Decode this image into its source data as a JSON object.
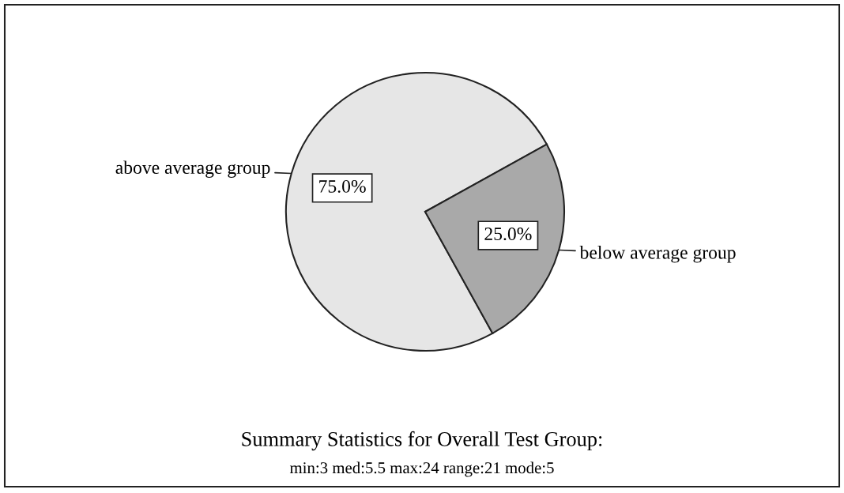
{
  "chart_data": {
    "type": "pie",
    "title": "Summary Statistics for Overall Test Group:",
    "annotations": [
      "min:3 med:5.5 max:24 range:21 mode:5"
    ],
    "categories": [
      "above average group",
      "below average group"
    ],
    "values": [
      75,
      25
    ],
    "colors": [
      "#e6e6e6",
      "#a9a9a9"
    ],
    "value_labels": [
      "75.0%",
      "25.0%"
    ],
    "legend": false
  }
}
